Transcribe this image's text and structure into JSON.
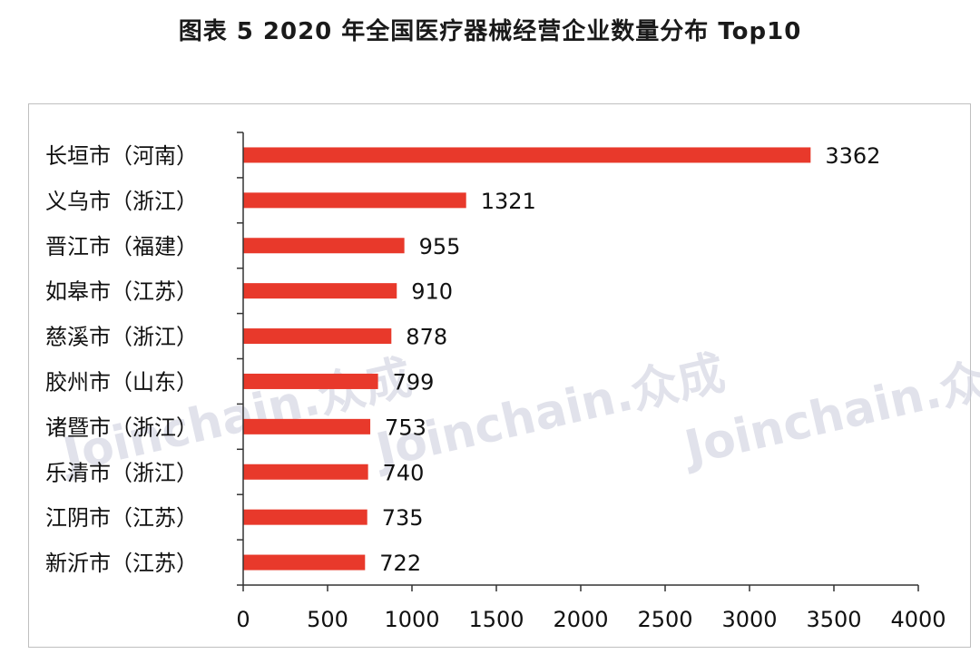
{
  "title": "图表 5   2020 年全国医疗器械经营企业数量分布 Top10",
  "watermark": "Joinchain.众成",
  "colors": {
    "bar": "#e8392b",
    "axis": "#333333",
    "frame": "#bfbfbf"
  },
  "chart_data": {
    "type": "bar",
    "orientation": "horizontal",
    "title": "图表 5   2020 年全国医疗器械经营企业数量分布 Top10",
    "xlabel": "",
    "ylabel": "",
    "xlim": [
      0,
      4000
    ],
    "xticks": [
      0,
      500,
      1000,
      1500,
      2000,
      2500,
      3000,
      3500,
      4000
    ],
    "grid": false,
    "categories": [
      "长垣市（河南）",
      "义乌市（浙江）",
      "晋江市（福建）",
      "如皋市（江苏）",
      "慈溪市（浙江）",
      "胶州市（山东）",
      "诸暨市（浙江）",
      "乐清市（浙江）",
      "江阴市（江苏）",
      "新沂市（江苏）"
    ],
    "values": [
      3362,
      1321,
      955,
      910,
      878,
      799,
      753,
      740,
      735,
      722
    ],
    "data_labels": true
  }
}
